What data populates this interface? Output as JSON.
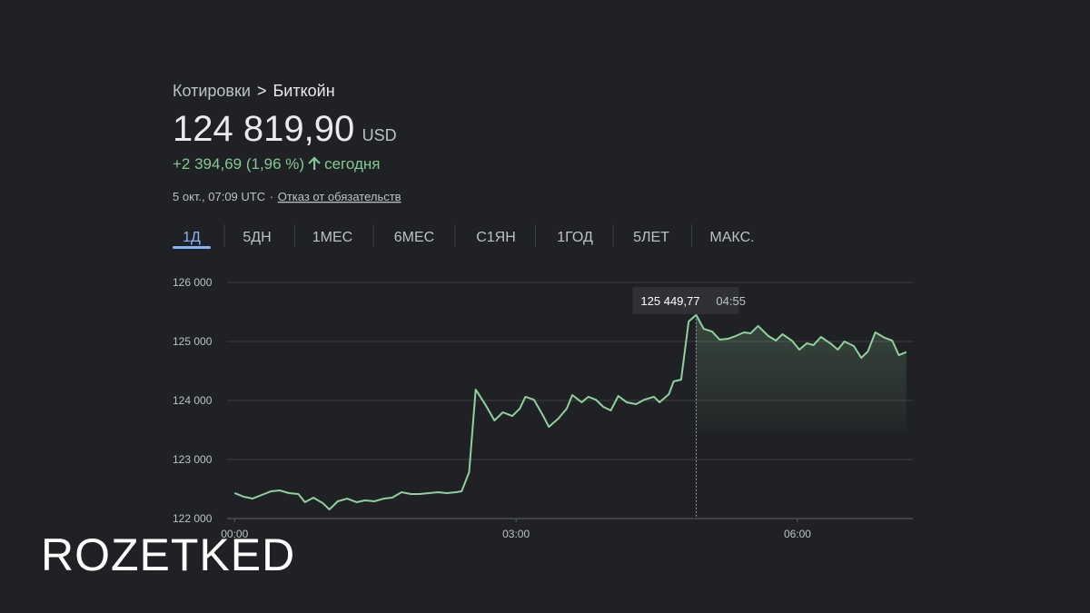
{
  "breadcrumb": {
    "parent": "Котировки",
    "separator": ">",
    "current": "Биткойн"
  },
  "price": {
    "value": "124 819,90",
    "currency": "USD"
  },
  "change": {
    "text": "+2 394,69 (1,96 %)",
    "period": "сегодня"
  },
  "meta": {
    "timestamp": "5 окт., 07:09 UTC",
    "separator": "·",
    "disclaimer": "Отказ от обязательств"
  },
  "tabs": [
    "1Д",
    "5ДН",
    "1МЕС",
    "6МЕС",
    "С1ЯН",
    "1ГОД",
    "5ЛЕТ",
    "МАКС."
  ],
  "active_tab": 0,
  "watermark": "ROZETKED",
  "chart_data": {
    "type": "line",
    "color": "#8fd19e",
    "grid": true,
    "x": [
      0,
      0.1,
      0.19,
      0.29,
      0.39,
      0.48,
      0.58,
      0.68,
      0.75,
      0.84,
      0.94,
      1.01,
      1.1,
      1.2,
      1.3,
      1.39,
      1.49,
      1.59,
      1.68,
      1.78,
      1.88,
      1.97,
      2.07,
      2.17,
      2.26,
      2.36,
      2.42,
      2.5,
      2.57,
      2.67,
      2.77,
      2.86,
      2.96,
      3.04,
      3.1,
      3.19,
      3.29,
      3.35,
      3.45,
      3.54,
      3.6,
      3.7,
      3.77,
      3.85,
      3.93,
      4.01,
      4.09,
      4.18,
      4.28,
      4.37,
      4.47,
      4.53,
      4.63,
      4.68,
      4.76,
      4.84,
      4.92,
      5,
      5.09,
      5.17,
      5.26,
      5.34,
      5.43,
      5.5,
      5.58,
      5.69,
      5.77,
      5.84,
      5.94,
      6.02,
      6.1,
      6.17,
      6.25,
      6.35,
      6.43,
      6.5,
      6.6,
      6.68,
      6.75,
      6.83,
      6.93,
      7.01,
      7.08,
      7.16
    ],
    "values": [
      122431,
      122369,
      122338,
      122400,
      122462,
      122477,
      122431,
      122415,
      122277,
      122354,
      122262,
      122154,
      122292,
      122338,
      122277,
      122308,
      122292,
      122338,
      122354,
      122446,
      122415,
      122415,
      122431,
      122446,
      122431,
      122446,
      122462,
      122785,
      124185,
      123938,
      123662,
      123800,
      123738,
      123862,
      124062,
      124015,
      123738,
      123554,
      123692,
      123862,
      124092,
      123969,
      124062,
      124015,
      123892,
      123831,
      124077,
      123969,
      123938,
      124015,
      124062,
      123969,
      124108,
      124323,
      124354,
      125338,
      125449.77,
      125215,
      125169,
      125031,
      125046,
      125092,
      125154,
      125138,
      125262,
      125092,
      125015,
      125123,
      125015,
      124862,
      124969,
      124938,
      125077,
      124969,
      124862,
      125000,
      124923,
      124723,
      124831,
      125154,
      125062,
      125015,
      124769,
      124820
    ],
    "xlim": [
      -0.08,
      7.23
    ],
    "xticks": [
      {
        "value": 0,
        "label": "00:00"
      },
      {
        "value": 3,
        "label": "03:00"
      },
      {
        "value": 6,
        "label": "06:00"
      }
    ],
    "ylim": [
      122000,
      126000
    ],
    "yticks": [
      {
        "value": 122000,
        "label": "122 000"
      },
      {
        "value": 123000,
        "label": "123 000"
      },
      {
        "value": 124000,
        "label": "124 000"
      },
      {
        "value": 125000,
        "label": "125 000"
      },
      {
        "value": 126000,
        "label": "126 000"
      }
    ],
    "annotation": {
      "index": 56,
      "x": 4.92,
      "value": 125449.77,
      "label": "125 449,77",
      "time": "04:55"
    }
  }
}
